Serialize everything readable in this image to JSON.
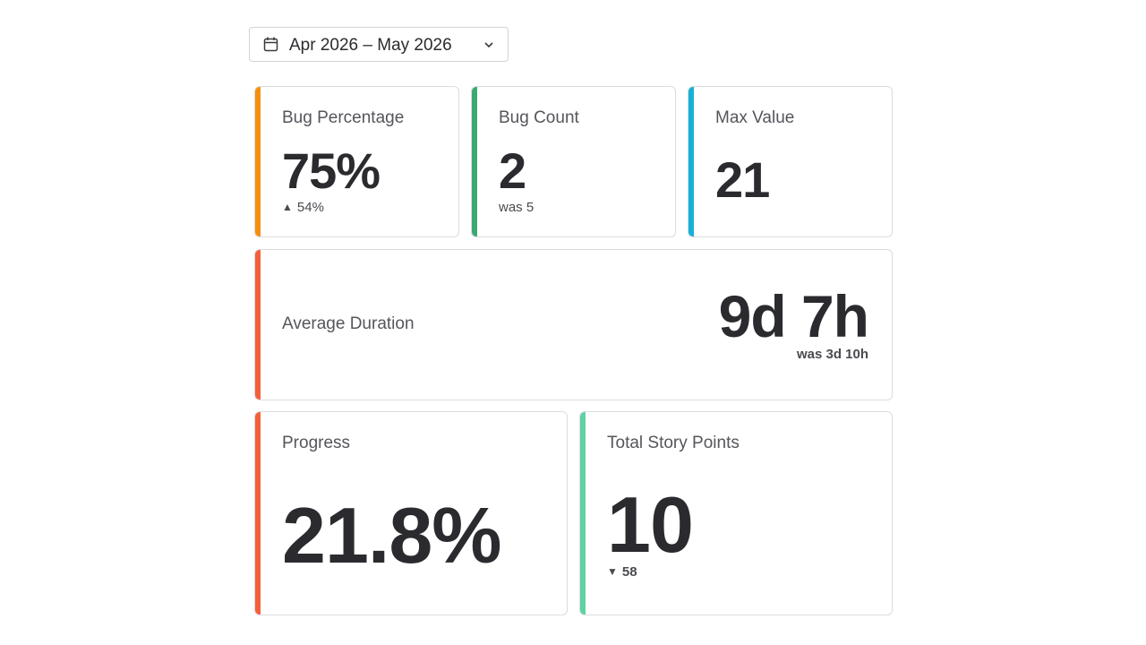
{
  "date_range": {
    "label": "Apr 2026 – May 2026"
  },
  "colors": {
    "bug_percentage_accent": "#f5900f",
    "bug_count_accent": "#3aaa6e",
    "max_value_accent": "#18b0d8",
    "average_duration_accent": "#f3603a",
    "progress_accent": "#f3603a",
    "story_points_accent": "#5ed2a4",
    "delta_up": "#b3261e",
    "delta_down": "#3e6e1c"
  },
  "cards": {
    "bug_percentage": {
      "title": "Bug Percentage",
      "value": "75%",
      "delta_icon": "triangle-up-icon",
      "delta": "54%"
    },
    "bug_count": {
      "title": "Bug Count",
      "value": "2",
      "previous": "was 5"
    },
    "max_value": {
      "title": "Max Value",
      "value": "21"
    },
    "average_duration": {
      "title": "Average Duration",
      "value": "9d 7h",
      "previous": "was 3d 10h"
    },
    "progress": {
      "title": "Progress",
      "value": "21.8%"
    },
    "total_story_points": {
      "title": "Total Story Points",
      "value": "10",
      "delta_icon": "triangle-down-icon",
      "delta": "58"
    }
  }
}
